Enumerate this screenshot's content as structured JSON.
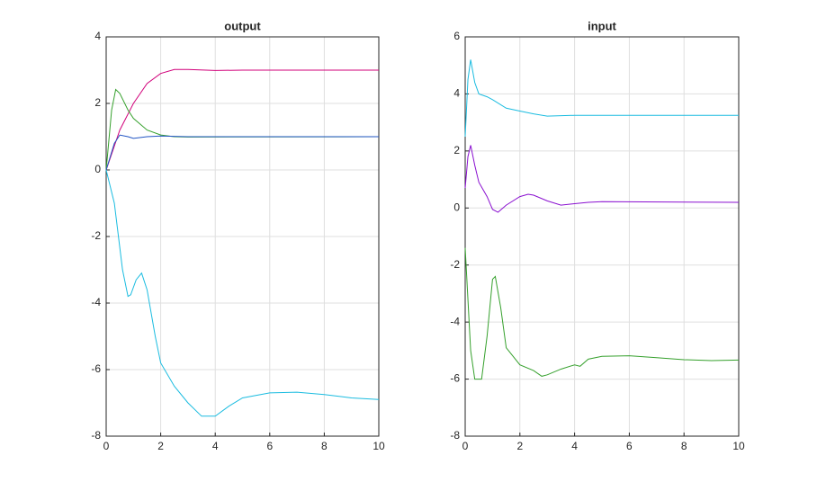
{
  "chart_data": [
    {
      "type": "line",
      "title": "output",
      "xlim": [
        0,
        10
      ],
      "ylim": [
        -8,
        4
      ],
      "xticks": [
        0,
        2,
        4,
        6,
        8,
        10
      ],
      "yticks": [
        -8,
        -6,
        -4,
        -2,
        0,
        2,
        4
      ],
      "grid": true,
      "series": [
        {
          "color": "#d1007a",
          "x": [
            0,
            0.5,
            1,
            1.5,
            2,
            2.5,
            3,
            4,
            5,
            10
          ],
          "values": [
            0,
            1.2,
            2.0,
            2.6,
            2.9,
            3.02,
            3.02,
            2.99,
            3.0,
            3.0
          ]
        },
        {
          "color": "#35a02c",
          "x": [
            0,
            0.2,
            0.35,
            0.5,
            0.8,
            1,
            1.5,
            2,
            2.5,
            3,
            10
          ],
          "values": [
            0,
            1.8,
            2.42,
            2.3,
            1.8,
            1.55,
            1.2,
            1.05,
            1.0,
            0.99,
            1.0
          ]
        },
        {
          "color": "#2255c4",
          "x": [
            0,
            0.3,
            0.5,
            0.8,
            1,
            1.5,
            2,
            3,
            10
          ],
          "values": [
            0,
            0.8,
            1.05,
            1.0,
            0.95,
            1.0,
            1.02,
            1.0,
            1.0
          ]
        },
        {
          "color": "#1bbce0",
          "x": [
            0,
            0.3,
            0.6,
            0.8,
            0.9,
            1.1,
            1.3,
            1.5,
            1.8,
            2,
            2.5,
            3,
            3.5,
            4,
            4.5,
            5,
            6,
            7,
            8,
            9,
            10
          ],
          "values": [
            0,
            -1,
            -3,
            -3.8,
            -3.75,
            -3.3,
            -3.1,
            -3.6,
            -5,
            -5.8,
            -6.5,
            -7,
            -7.4,
            -7.4,
            -7.1,
            -6.85,
            -6.7,
            -6.68,
            -6.75,
            -6.85,
            -6.9
          ]
        }
      ]
    },
    {
      "type": "line",
      "title": "input",
      "xlim": [
        0,
        10
      ],
      "ylim": [
        -8,
        6
      ],
      "xticks": [
        0,
        2,
        4,
        6,
        8,
        10
      ],
      "yticks": [
        -8,
        -6,
        -4,
        -2,
        0,
        2,
        4,
        6
      ],
      "grid": true,
      "series": [
        {
          "color": "#1bbce0",
          "x": [
            0,
            0.1,
            0.2,
            0.35,
            0.5,
            0.8,
            1,
            1.5,
            2,
            2.5,
            3,
            4,
            5,
            10
          ],
          "values": [
            2.5,
            4.5,
            5.2,
            4.4,
            4.0,
            3.9,
            3.8,
            3.5,
            3.4,
            3.3,
            3.22,
            3.25,
            3.25,
            3.25
          ]
        },
        {
          "color": "#8a10d0",
          "x": [
            0,
            0.1,
            0.2,
            0.35,
            0.5,
            0.8,
            1,
            1.2,
            1.5,
            2,
            2.3,
            2.5,
            3,
            3.5,
            4,
            4.5,
            5,
            10
          ],
          "values": [
            0.7,
            1.8,
            2.2,
            1.5,
            0.9,
            0.4,
            -0.05,
            -0.15,
            0.1,
            0.4,
            0.48,
            0.45,
            0.25,
            0.1,
            0.15,
            0.2,
            0.22,
            0.2
          ]
        },
        {
          "color": "#35a02c",
          "x": [
            0,
            0.2,
            0.35,
            0.6,
            0.8,
            1,
            1.1,
            1.3,
            1.5,
            2,
            2.5,
            2.8,
            3,
            3.5,
            4,
            4.2,
            4.5,
            5,
            6,
            7,
            8,
            9,
            10
          ],
          "values": [
            -1.4,
            -5,
            -6,
            -6,
            -4.5,
            -2.5,
            -2.4,
            -3.5,
            -4.9,
            -5.5,
            -5.7,
            -5.9,
            -5.85,
            -5.65,
            -5.5,
            -5.55,
            -5.3,
            -5.2,
            -5.18,
            -5.25,
            -5.32,
            -5.35,
            -5.33
          ]
        }
      ]
    }
  ]
}
